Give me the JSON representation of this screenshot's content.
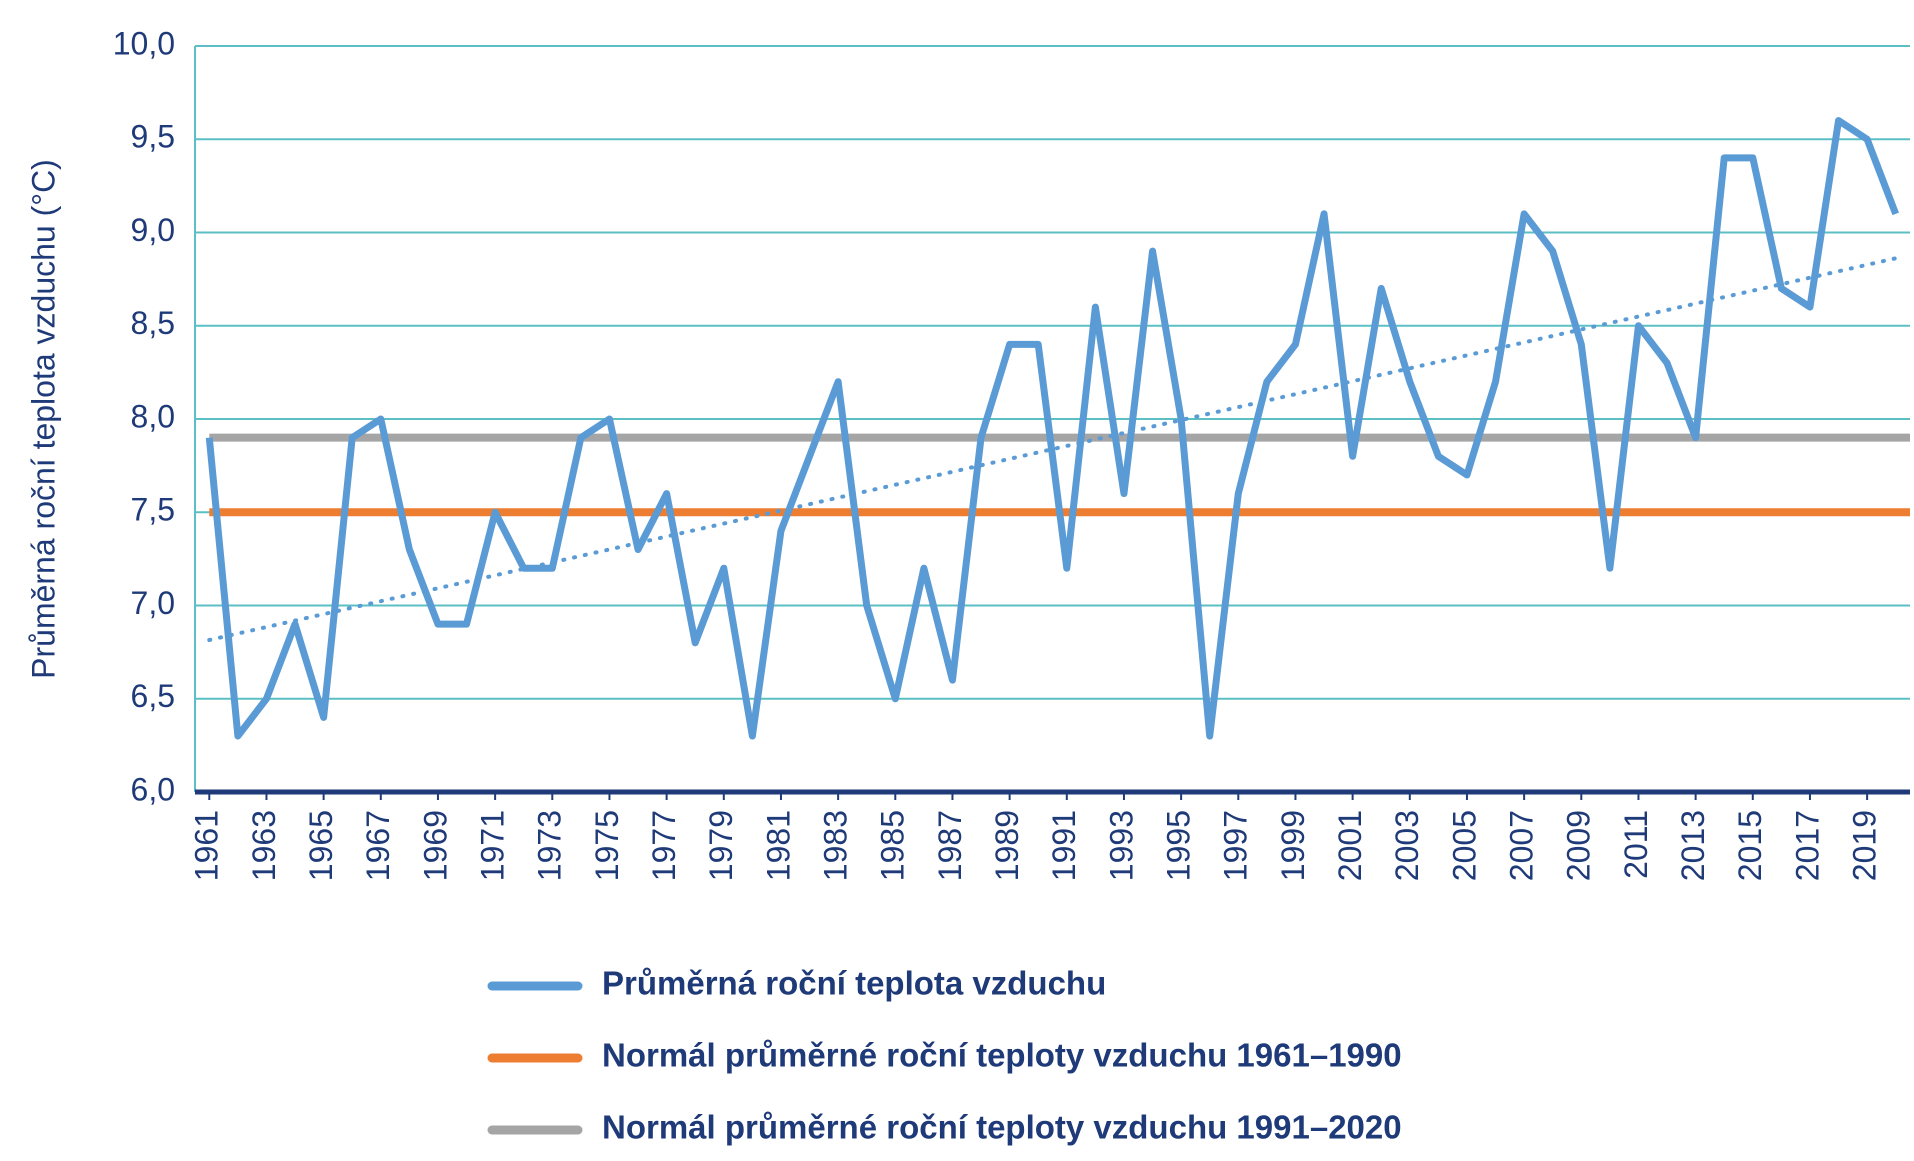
{
  "chart_data": {
    "type": "line",
    "y_label": "Průměrná roční teplota vzduchu (°C)",
    "x": [
      1961,
      1962,
      1963,
      1964,
      1965,
      1966,
      1967,
      1968,
      1969,
      1970,
      1971,
      1972,
      1973,
      1974,
      1975,
      1976,
      1977,
      1978,
      1979,
      1980,
      1981,
      1982,
      1983,
      1984,
      1985,
      1986,
      1987,
      1988,
      1989,
      1990,
      1991,
      1992,
      1993,
      1994,
      1995,
      1996,
      1997,
      1998,
      1999,
      2000,
      2001,
      2002,
      2003,
      2004,
      2005,
      2006,
      2007,
      2008,
      2009,
      2010,
      2011,
      2012,
      2013,
      2014,
      2015,
      2016,
      2017,
      2018,
      2019,
      2020
    ],
    "series": [
      {
        "name": "Průměrná roční teplota vzduchu",
        "color": "#5b9bd5",
        "values": [
          7.9,
          6.3,
          6.5,
          6.9,
          6.4,
          7.9,
          8.0,
          7.3,
          6.9,
          6.9,
          7.5,
          7.2,
          7.2,
          7.9,
          8.0,
          7.3,
          7.6,
          6.8,
          7.2,
          6.3,
          7.4,
          7.8,
          8.2,
          7.0,
          6.5,
          7.2,
          6.6,
          7.9,
          8.4,
          8.4,
          7.2,
          8.6,
          7.6,
          8.9,
          8.0,
          6.3,
          7.6,
          8.2,
          8.4,
          9.1,
          7.8,
          8.7,
          8.2,
          7.8,
          7.7,
          8.2,
          9.1,
          8.9,
          8.4,
          7.2,
          8.5,
          8.3,
          7.9,
          9.4,
          9.4,
          8.7,
          8.6,
          9.6,
          9.5,
          9.1
        ]
      }
    ],
    "reference_lines": [
      {
        "name": "Normál průměrné roční teploty vzduchu 1961–1990",
        "color": "#ed7d31",
        "value": 7.5
      },
      {
        "name": "Normál průměrné roční teploty vzduchu 1991–2020",
        "color": "#a5a5a5",
        "value": 7.9
      }
    ],
    "trendline": "linear",
    "xlim": [
      1960.5,
      2020.5
    ],
    "xticks": [
      1961,
      1963,
      1965,
      1967,
      1969,
      1971,
      1973,
      1975,
      1977,
      1979,
      1981,
      1983,
      1985,
      1987,
      1989,
      1991,
      1993,
      1995,
      1997,
      1999,
      2001,
      2003,
      2005,
      2007,
      2009,
      2011,
      2013,
      2015,
      2017,
      2019
    ],
    "ylim": [
      6,
      10
    ],
    "yticks": [
      {
        "value": 6,
        "label": "6,0"
      },
      {
        "value": 6.5,
        "label": "6,5"
      },
      {
        "value": 7,
        "label": "7,0"
      },
      {
        "value": 7.5,
        "label": "7,5"
      },
      {
        "value": 8,
        "label": "8,0"
      },
      {
        "value": 8.5,
        "label": "8,5"
      },
      {
        "value": 9,
        "label": "9,0"
      },
      {
        "value": 9.5,
        "label": "9,5"
      },
      {
        "value": 10,
        "label": "10,0"
      }
    ],
    "grid": true
  }
}
